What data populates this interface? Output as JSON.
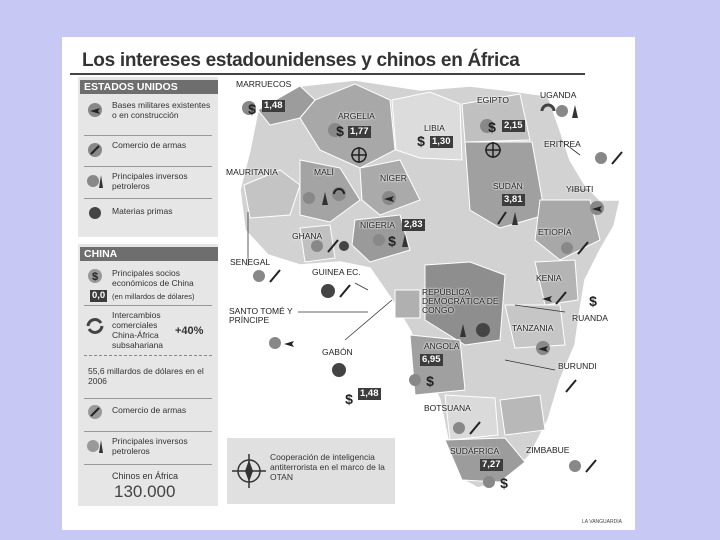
{
  "title": "Los intereses estadounidenses y chinos en África",
  "legend": {
    "usa_header": "ESTADOS UNIDOS",
    "usa_items": [
      {
        "icon": "military-base-icon",
        "text": "Bases militares existentes o en construcción"
      },
      {
        "icon": "arms-trade-icon",
        "text": "Comercio de armas"
      },
      {
        "icon": "oil-supplier-icon",
        "text": "Principales inversos petroleros"
      },
      {
        "icon": "raw-materials-icon",
        "text": "Materias primas"
      }
    ],
    "china_header": "CHINA",
    "china_partners_text": "Principales socios económicos de China",
    "china_partners_unit_value": "0,0",
    "china_partners_unit_text": "(en millardos de dólares)",
    "china_trade_text": "Intercambios comerciales China-África subsahariana",
    "china_trade_pct": "+40%",
    "china_trade_total": "55,6 millardos de dólares en el 2006",
    "china_arms_text": "Comercio de armas",
    "china_oil_text": "Principales inversos petroleros",
    "china_people_label": "Chinos en África",
    "china_people_value": "130.000"
  },
  "nato_box_text": "Cooperación de inteligencia antiterrorista en el marco de la OTAN",
  "credit": "LA VANGUARDIA",
  "countries": {
    "marruecos": "MARRUECOS",
    "argelia": "ARGELIA",
    "libia": "LIBIA",
    "egipto": "EGIPTO",
    "uganda": "UGANDA",
    "eritrea": "ERITREA",
    "yibuti": "YIBUTI",
    "sudan": "SUDÁN",
    "etiopia": "ETIOPÍA",
    "mauritania": "MAURITANIA",
    "mali": "MALÍ",
    "niger": "NÍGER",
    "nigeria": "NIGERIA",
    "ghana": "GHANA",
    "senegal": "SENEGAL",
    "guinea_ec": "GUINEA EC.",
    "santo_tome": "SANTO TOMÉ Y PRÍNCIPE",
    "rdc": "REPÚBLICA DEMOCRÁTICA DE CONGO",
    "kenia": "KENIA",
    "ruanda": "RUANDA",
    "tanzania": "TANZANIA",
    "gabon": "GABÓN",
    "angola": "ANGOLA",
    "burundi": "BURUNDI",
    "botsuana": "BOTSUANA",
    "sudafrica": "SUDÁFRICA",
    "zimbabue": "ZIMBABUE"
  },
  "values": {
    "marruecos": "1,48",
    "argelia": "1,77",
    "libia": "1,30",
    "egipto": "2,15",
    "sudan": "3,81",
    "nigeria": "2,83",
    "angola": "6,95",
    "gabon": "1,48",
    "sudafrica": "7,27"
  },
  "colors": {
    "page_bg": "#c8c8f4",
    "map_light": "#d2d2d2",
    "map_dark": "#9c9c9c",
    "header": "#6e6e6e"
  }
}
